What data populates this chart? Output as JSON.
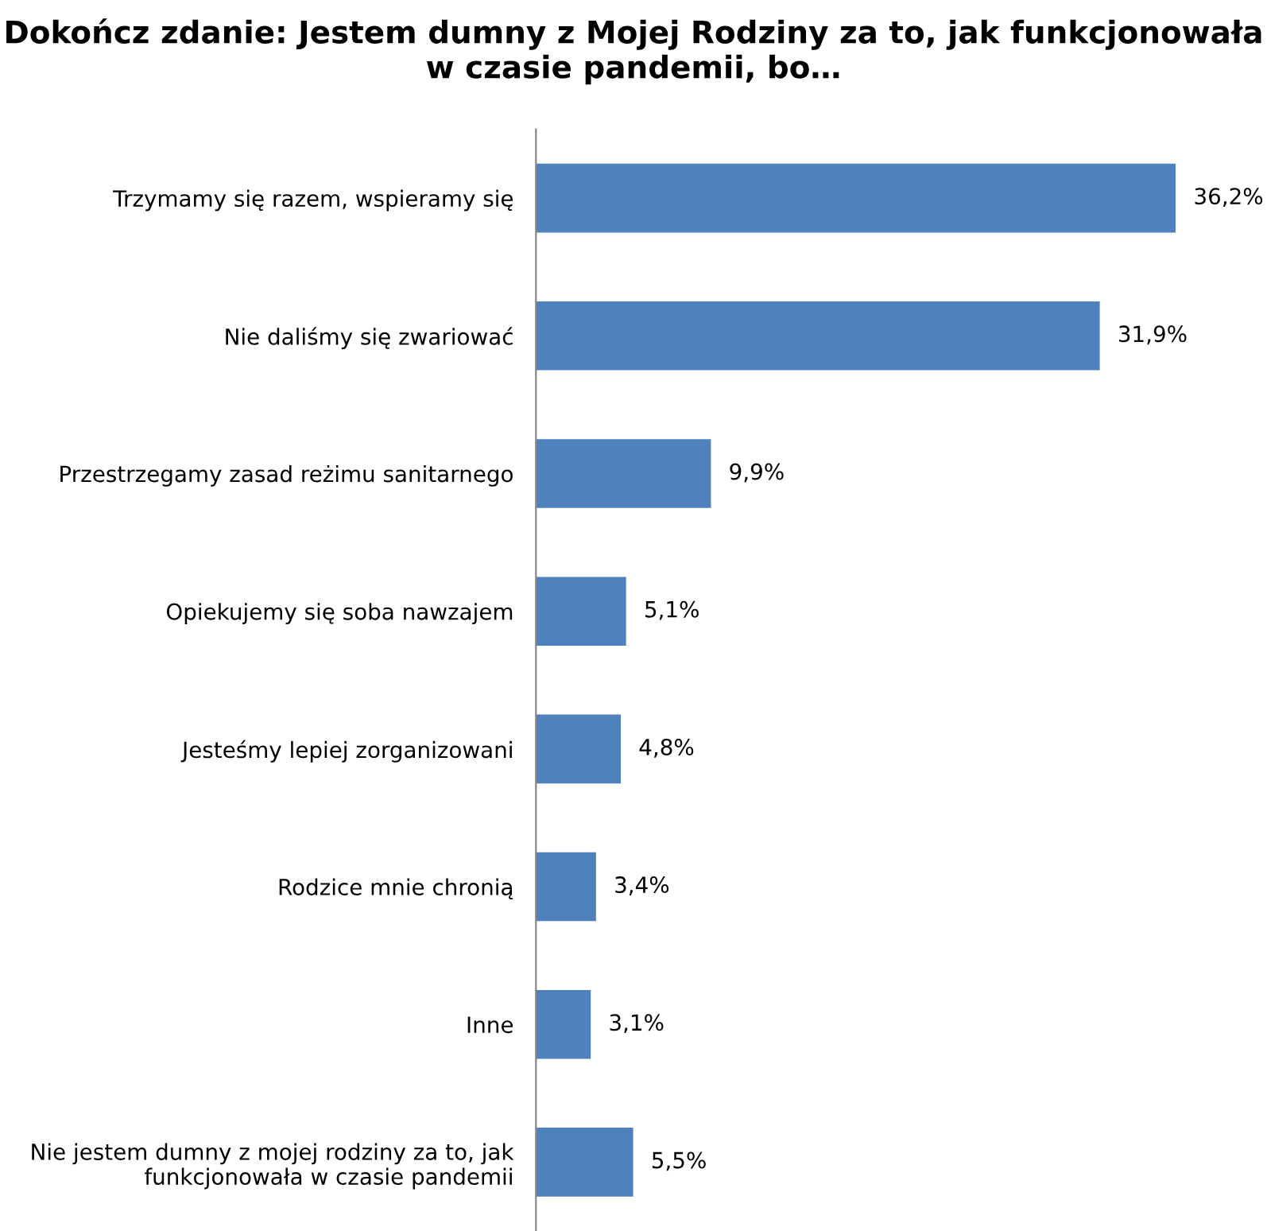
{
  "chart_data": {
    "type": "bar",
    "orientation": "horizontal",
    "title": "Dokończ zdanie: Jestem dumny z Mojej Rodziny za to, jak funkcjonowała w czasie pandemii, bo…",
    "categories": [
      "Trzymamy się razem, wspieramy się",
      "Nie daliśmy się zwariować",
      "Przestrzegamy zasad reżimu sanitarnego",
      "Opiekujemy się soba nawzajem",
      "Jesteśmy lepiej zorganizowani",
      "Rodzice mnie chronią",
      "Inne",
      "Nie jestem dumny z mojej rodziny za to, jak\nfunkcjonowała w czasie pandemii"
    ],
    "values": [
      36.2,
      31.9,
      9.9,
      5.1,
      4.8,
      3.4,
      3.1,
      5.5
    ],
    "value_labels": [
      "36,2%",
      "31,9%",
      "9,9%",
      "5,1%",
      "4,8%",
      "3,4%",
      "3,1%",
      "5,5%"
    ],
    "color": "#4f81bd",
    "grid": false,
    "legend": false
  }
}
